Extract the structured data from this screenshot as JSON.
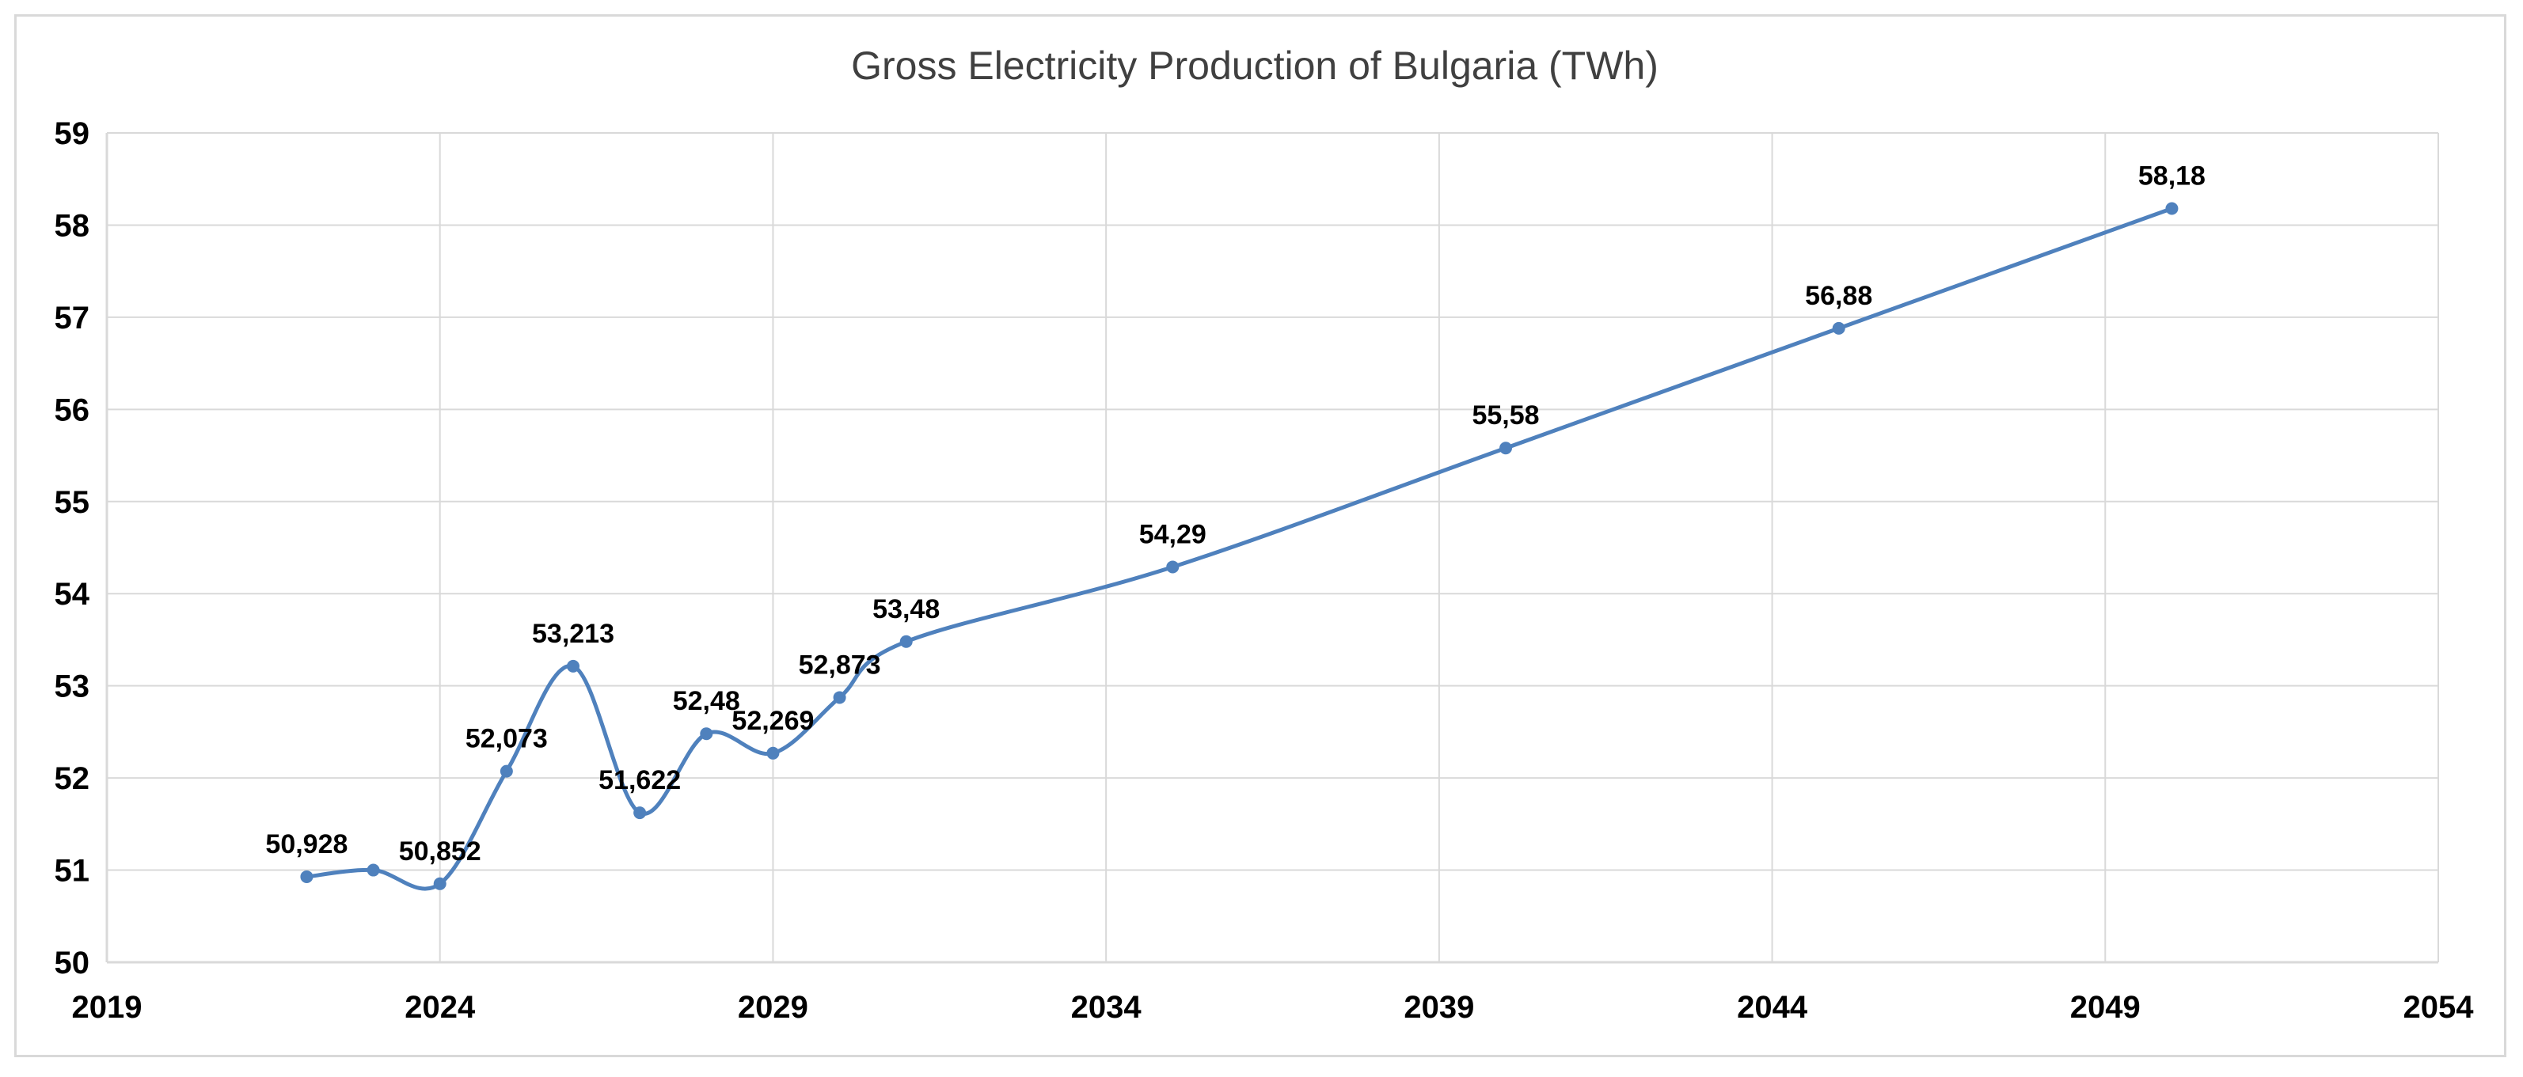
{
  "chart_data": {
    "type": "line",
    "title": "Gross Electricity Production of Bulgaria (TWh)",
    "xlabel": "",
    "ylabel": "",
    "xlim": [
      2019,
      2054
    ],
    "ylim": [
      50,
      59
    ],
    "x_ticks": [
      2019,
      2024,
      2029,
      2034,
      2039,
      2044,
      2049,
      2054
    ],
    "y_ticks": [
      50,
      51,
      52,
      53,
      54,
      55,
      56,
      57,
      58,
      59
    ],
    "grid": "vertical and horizontal",
    "legend": "none",
    "series": [
      {
        "name": "Gross Electricity Production",
        "color": "#4f81bd",
        "smooth": true,
        "points": [
          {
            "x": 2022,
            "y": 50.928,
            "label": "50,928"
          },
          {
            "x": 2023,
            "y": 51.0,
            "label": ""
          },
          {
            "x": 2024,
            "y": 50.852,
            "label": "50,852"
          },
          {
            "x": 2025,
            "y": 52.073,
            "label": "52,073"
          },
          {
            "x": 2026,
            "y": 53.213,
            "label": "53,213"
          },
          {
            "x": 2027,
            "y": 51.622,
            "label": "51,622"
          },
          {
            "x": 2028,
            "y": 52.48,
            "label": "52,48"
          },
          {
            "x": 2029,
            "y": 52.269,
            "label": "52,269"
          },
          {
            "x": 2030,
            "y": 52.873,
            "label": "52,873"
          },
          {
            "x": 2031,
            "y": 53.48,
            "label": "53,48"
          },
          {
            "x": 2035,
            "y": 54.29,
            "label": "54,29"
          },
          {
            "x": 2040,
            "y": 55.58,
            "label": "55,58"
          },
          {
            "x": 2045,
            "y": 56.88,
            "label": "56,88"
          },
          {
            "x": 2050,
            "y": 58.18,
            "label": "58,18"
          }
        ]
      }
    ]
  },
  "colors": {
    "line": "#4f81bd",
    "grid": "#d9d9d9",
    "frame": "#d9d9d9"
  }
}
